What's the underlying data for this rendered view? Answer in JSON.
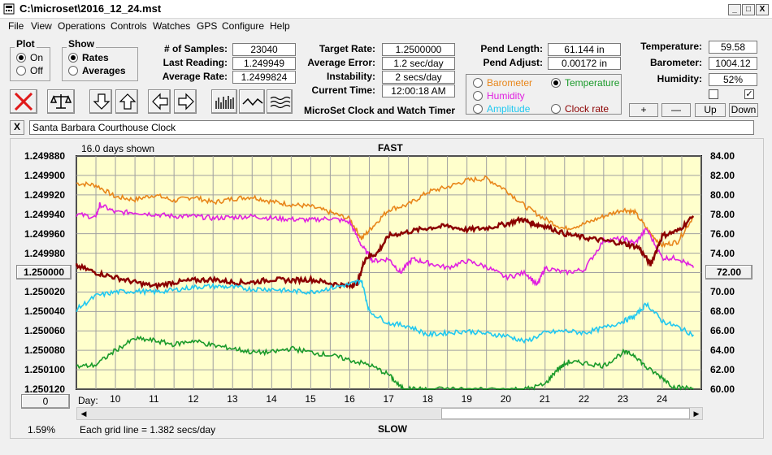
{
  "window": {
    "title": "C:\\microset\\2016_12_24.mst",
    "minimize": "_",
    "maximize": "□",
    "close": "X"
  },
  "menu": [
    "File",
    "View",
    "Operations",
    "Controls",
    "Watches",
    "GPS",
    "Configure",
    "Help"
  ],
  "plot_group": {
    "label": "Plot",
    "options": [
      "On",
      "Off"
    ],
    "selected": 0
  },
  "show_group": {
    "label": "Show",
    "options": [
      "Rates",
      "Averages"
    ],
    "selected": 0
  },
  "stats": {
    "samples_label": "# of Samples:",
    "samples": "23040",
    "last_reading_label": "Last Reading:",
    "last_reading": "1.249949",
    "average_rate_label": "Average Rate:",
    "average_rate": "1.2499824"
  },
  "targets": {
    "target_rate_label": "Target Rate:",
    "target_rate": "1.2500000",
    "average_error_label": "Average Error:",
    "average_error": "1.2 sec/day",
    "instability_label": "Instability:",
    "instability": "2 secs/day",
    "current_time_label": "Current Time:",
    "current_time": "12:00:18 AM",
    "app_name": "MicroSet Clock and Watch Timer"
  },
  "pendulum": {
    "length_label": "Pend Length:",
    "length": "61.144 in",
    "adjust_label": "Pend Adjust:",
    "adjust": "0.00172 in"
  },
  "environment": {
    "temperature_label": "Temperature:",
    "temperature": "59.58",
    "barometer_label": "Barometer:",
    "barometer": "1004.12",
    "humidity_label": "Humidity:",
    "humidity": "52%"
  },
  "series_select": {
    "options": [
      {
        "label": "Barometer",
        "color": "#e8861a",
        "selected": false
      },
      {
        "label": "Temperature",
        "color": "#1a9a2a",
        "selected": true
      },
      {
        "label": "Humidity",
        "color": "#e020e0",
        "selected": false
      },
      {
        "label": "Clock rate",
        "color": "#8b0000",
        "selected": false
      },
      {
        "label": "Amplitude",
        "color": "#20c8f0",
        "selected": false
      }
    ]
  },
  "env_buttons": {
    "plus": "+",
    "minus": "—",
    "up": "Up",
    "down": "Down"
  },
  "checkboxes": [
    false,
    true
  ],
  "clock": {
    "close": "X",
    "name": "Santa Barbara Courthouse Clock"
  },
  "chart_labels": {
    "days_shown": "16.0 days shown",
    "fast": "FAST",
    "slow": "SLOW",
    "day": "Day:",
    "grid_note": "Each grid line = 1.382 secs/day",
    "percent": "1.59%",
    "left_mid_button": "1.250000",
    "right_mid_button": "72.00",
    "bottom_left_button": "0"
  },
  "chart_data": {
    "type": "line",
    "left_axis": {
      "ticks": [
        "1.249880",
        "1.249900",
        "1.249920",
        "1.249940",
        "1.249960",
        "1.249980",
        "1.250000",
        "1.250020",
        "1.250040",
        "1.250060",
        "1.250080",
        "1.250100",
        "1.250120"
      ],
      "inverted": true
    },
    "right_axis": {
      "ticks": [
        "84.00",
        "82.00",
        "80.00",
        "78.00",
        "76.00",
        "74.00",
        "72.00",
        "70.00",
        "68.00",
        "66.00",
        "64.00",
        "62.00",
        "60.00"
      ],
      "range": [
        60,
        84
      ]
    },
    "x_axis": {
      "ticks": [
        10,
        11,
        12,
        13,
        14,
        15,
        16,
        17,
        18,
        19,
        20,
        21,
        22,
        23,
        24
      ],
      "range": [
        9.0,
        25.0
      ]
    },
    "grid": true,
    "series": [
      {
        "color": "#e8861a",
        "x": [
          9.0,
          9.5,
          10.0,
          10.5,
          11.0,
          11.5,
          12.0,
          12.5,
          13.0,
          13.5,
          14.0,
          14.5,
          15.0,
          15.5,
          16.0,
          16.3,
          16.6,
          17.0,
          17.5,
          18.0,
          18.5,
          19.0,
          19.5,
          20.0,
          20.5,
          21.0,
          21.5,
          22.0,
          22.5,
          23.0,
          23.3,
          23.7,
          24.0,
          24.4,
          24.8
        ],
        "y": [
          81.2,
          81.0,
          79.8,
          79.5,
          80.0,
          79.4,
          79.8,
          79.2,
          79.6,
          79.8,
          79.3,
          79.0,
          78.8,
          78.2,
          77.5,
          75.5,
          76.8,
          78.5,
          79.0,
          80.3,
          80.8,
          81.5,
          81.7,
          80.5,
          78.8,
          77.5,
          76.5,
          77.0,
          77.8,
          78.5,
          78.2,
          76.0,
          74.8,
          75.2,
          77.8
        ]
      },
      {
        "color": "#e020e0",
        "x": [
          9.0,
          9.5,
          9.6,
          10.0,
          10.5,
          11.0,
          11.5,
          12.0,
          12.5,
          13.0,
          13.5,
          14.0,
          14.5,
          15.0,
          15.5,
          16.0,
          16.3,
          16.6,
          17.0,
          17.3,
          17.6,
          18.0,
          18.5,
          19.0,
          19.5,
          20.0,
          20.5,
          20.8,
          21.0,
          21.5,
          22.0,
          22.5,
          23.0,
          23.3,
          23.6,
          24.0,
          24.4,
          24.8
        ],
        "y": [
          78.0,
          77.7,
          79.0,
          78.2,
          78.2,
          78.0,
          77.8,
          77.8,
          77.6,
          77.7,
          77.8,
          77.6,
          77.5,
          77.4,
          77.6,
          77.2,
          74.8,
          73.2,
          73.4,
          72.0,
          73.4,
          73.0,
          72.5,
          73.2,
          72.6,
          71.5,
          72.0,
          70.7,
          72.5,
          72.0,
          72.3,
          75.3,
          75.5,
          75.0,
          76.5,
          73.5,
          73.5,
          72.5
        ]
      },
      {
        "color": "#8b0000",
        "x": [
          9.0,
          9.5,
          10.0,
          10.5,
          11.0,
          11.5,
          12.0,
          12.5,
          13.0,
          13.5,
          14.0,
          14.5,
          15.0,
          15.5,
          16.0,
          16.2,
          16.4,
          16.7,
          17.0,
          17.5,
          18.0,
          18.5,
          19.0,
          19.5,
          20.0,
          20.4,
          20.7,
          21.0,
          21.5,
          22.0,
          22.5,
          23.0,
          23.4,
          23.7,
          24.0,
          24.4,
          24.8
        ],
        "y": [
          72.7,
          72.0,
          71.5,
          71.0,
          70.6,
          71.0,
          71.2,
          71.3,
          71.0,
          71.0,
          71.3,
          71.2,
          71.3,
          70.9,
          70.6,
          71.0,
          73.5,
          74.0,
          75.8,
          76.2,
          76.6,
          76.8,
          76.4,
          76.6,
          77.0,
          77.5,
          77.0,
          76.8,
          76.0,
          75.6,
          75.3,
          75.0,
          74.6,
          72.8,
          75.8,
          76.3,
          77.8
        ]
      },
      {
        "color": "#20c8f0",
        "x": [
          9.0,
          9.5,
          10.0,
          10.5,
          11.0,
          11.5,
          12.0,
          12.5,
          13.0,
          13.5,
          14.0,
          14.5,
          15.0,
          15.5,
          16.0,
          16.3,
          16.5,
          17.0,
          17.5,
          18.0,
          18.5,
          19.0,
          19.5,
          20.0,
          20.5,
          21.0,
          21.5,
          22.0,
          22.5,
          23.0,
          23.3,
          23.6,
          24.0,
          24.4,
          24.8
        ],
        "y": [
          68.2,
          69.6,
          70.0,
          70.1,
          70.0,
          70.2,
          70.5,
          70.6,
          70.5,
          70.3,
          70.3,
          70.1,
          70.0,
          70.4,
          70.8,
          71.2,
          68.0,
          66.8,
          66.5,
          65.6,
          65.8,
          66.0,
          65.7,
          65.5,
          64.9,
          65.8,
          66.0,
          65.8,
          66.3,
          67.0,
          67.5,
          68.8,
          67.0,
          66.4,
          65.6
        ]
      },
      {
        "color": "#1a9a2a",
        "x": [
          9.0,
          9.5,
          10.0,
          10.5,
          11.0,
          11.5,
          12.0,
          12.5,
          13.0,
          13.5,
          14.0,
          14.5,
          15.0,
          15.5,
          16.0,
          16.5,
          17.0,
          17.3,
          17.6,
          18.0,
          19.0,
          20.0,
          20.5,
          21.0,
          21.3,
          21.6,
          22.0,
          22.5,
          23.0,
          23.3,
          23.6,
          24.0,
          24.3,
          24.8
        ],
        "y": [
          62.3,
          62.5,
          64.0,
          65.2,
          65.0,
          64.6,
          65.0,
          64.5,
          64.2,
          63.8,
          63.8,
          64.2,
          63.8,
          63.5,
          63.0,
          62.5,
          61.5,
          60.2,
          60.0,
          60.0,
          60.0,
          60.0,
          60.0,
          60.5,
          62.0,
          62.8,
          62.7,
          62.4,
          63.8,
          63.5,
          62.2,
          61.2,
          60.2,
          60.1
        ]
      }
    ]
  }
}
